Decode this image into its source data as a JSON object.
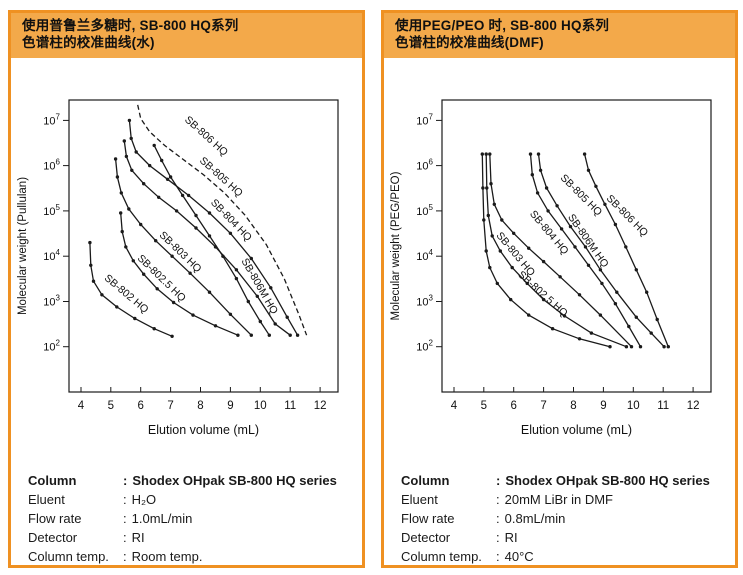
{
  "colors": {
    "panel_border": "#EF9122",
    "header_bg": "#F3A94A",
    "curve": "#1a1a1a",
    "text": "#111111"
  },
  "separator": ":",
  "panels": [
    {
      "header": {
        "line1": "使用普鲁兰多糖时, SB-800 HQ系列",
        "line2": "色谱柱的校准曲线(水)"
      },
      "specs": [
        {
          "label": "Column",
          "value": "Shodex OHpak SB-800 HQ series",
          "bold": true
        },
        {
          "label": "Eluent",
          "value": "H₂O",
          "bold": false
        },
        {
          "label": "Flow rate",
          "value": "1.0mL/min",
          "bold": false
        },
        {
          "label": "Detector",
          "value": "RI",
          "bold": false
        },
        {
          "label": "Column temp.",
          "value": "Room temp.",
          "bold": false
        }
      ]
    },
    {
      "header": {
        "line1": "使用PEG/PEO 时, SB-800 HQ系列",
        "line2": "色谱柱的校准曲线(DMF)"
      },
      "specs": [
        {
          "label": "Column",
          "value": "Shodex OHpak SB-800 HQ series",
          "bold": true
        },
        {
          "label": "Eluent",
          "value": "20mM LiBr in DMF",
          "bold": false
        },
        {
          "label": "Flow rate",
          "value": "0.8mL/min",
          "bold": false
        },
        {
          "label": "Detector",
          "value": "RI",
          "bold": false
        },
        {
          "label": "Column temp.",
          "value": "40°C",
          "bold": false
        }
      ]
    }
  ],
  "chart_data": [
    {
      "type": "line",
      "title": "使用普鲁兰多糖时, SB-800 HQ系列色谱柱的校准曲线(水)",
      "xlabel": "Elution volume (mL)",
      "ylabel": "Molecular weight (Pullulan)",
      "xlim": [
        3.6,
        12.6
      ],
      "ylim_log": [
        1.0,
        7.45
      ],
      "x_ticks": [
        4,
        5,
        6,
        7,
        8,
        9,
        10,
        11,
        12
      ],
      "y_tick_exponents": [
        2,
        3,
        4,
        5,
        6,
        7
      ],
      "grid": false,
      "legend_position": "labels-on-curves",
      "series": [
        {
          "name": "SB-802 HQ",
          "dashed": false,
          "label_pos": [
            5.45,
            1300
          ],
          "label_angle": 40,
          "points": [
            [
              4.3,
              20000
            ],
            [
              4.33,
              6300
            ],
            [
              4.42,
              2800
            ],
            [
              4.7,
              1400
            ],
            [
              5.2,
              760
            ],
            [
              5.8,
              420
            ],
            [
              6.45,
              250
            ],
            [
              7.05,
              170
            ]
          ]
        },
        {
          "name": "SB-802.5 HQ",
          "dashed": false,
          "label_pos": [
            6.62,
            2900
          ],
          "label_angle": 44,
          "points": [
            [
              5.33,
              90000
            ],
            [
              5.38,
              35000
            ],
            [
              5.5,
              16000
            ],
            [
              5.75,
              7900
            ],
            [
              6.1,
              4000
            ],
            [
              6.55,
              1900
            ],
            [
              7.1,
              950
            ],
            [
              7.75,
              500
            ],
            [
              8.5,
              290
            ],
            [
              9.25,
              180
            ]
          ]
        },
        {
          "name": "SB-803 HQ",
          "dashed": false,
          "label_pos": [
            7.25,
            11000
          ],
          "label_angle": 44,
          "points": [
            [
              5.16,
              1400000
            ],
            [
              5.22,
              560000
            ],
            [
              5.35,
              250000
            ],
            [
              5.6,
              110000
            ],
            [
              6.0,
              50000
            ],
            [
              6.5,
              22000
            ],
            [
              7.05,
              10000
            ],
            [
              7.65,
              4200
            ],
            [
              8.3,
              1600
            ],
            [
              9.0,
              520
            ],
            [
              9.7,
              180
            ]
          ]
        },
        {
          "name": "SB-804 HQ",
          "dashed": false,
          "label_pos": [
            8.95,
            56000
          ],
          "label_angle": 46,
          "points": [
            [
              5.45,
              3500000
            ],
            [
              5.52,
              1600000
            ],
            [
              5.7,
              790000
            ],
            [
              6.1,
              400000
            ],
            [
              6.6,
              200000
            ],
            [
              7.2,
              100000
            ],
            [
              7.85,
              42000
            ],
            [
              8.5,
              16000
            ],
            [
              9.2,
              5000
            ],
            [
              9.9,
              1300
            ],
            [
              10.5,
              320
            ],
            [
              11.0,
              180
            ]
          ]
        },
        {
          "name": "SB-806M HQ",
          "dashed": false,
          "label_pos": [
            9.88,
            2000
          ],
          "label_angle": 60,
          "points": [
            [
              6.45,
              2800000
            ],
            [
              6.7,
              1300000
            ],
            [
              7.0,
              560000
            ],
            [
              7.4,
              220000
            ],
            [
              7.85,
              79000
            ],
            [
              8.3,
              28000
            ],
            [
              8.75,
              10000
            ],
            [
              9.2,
              3200
            ],
            [
              9.6,
              1000
            ],
            [
              10.0,
              360
            ],
            [
              10.3,
              180
            ]
          ]
        },
        {
          "name": "SB-805 HQ",
          "dashed": false,
          "label_pos": [
            8.62,
            500000
          ],
          "label_angle": 42,
          "points": [
            [
              5.62,
              10000000
            ],
            [
              5.68,
              4000000
            ],
            [
              5.85,
              2000000
            ],
            [
              6.3,
              1000000
            ],
            [
              6.9,
              500000
            ],
            [
              7.6,
              220000
            ],
            [
              8.3,
              90000
            ],
            [
              9.0,
              32000
            ],
            [
              9.7,
              8900
            ],
            [
              10.35,
              2000
            ],
            [
              10.9,
              450
            ],
            [
              11.25,
              180
            ]
          ]
        },
        {
          "name": "SB-806 HQ",
          "dashed": true,
          "label_pos": [
            8.12,
            4000000
          ],
          "label_angle": 42,
          "points": [
            [
              5.9,
              22000000
            ],
            [
              6.0,
              11000000
            ],
            [
              6.3,
              5600000
            ],
            [
              6.8,
              2800000
            ],
            [
              7.4,
              1400000
            ],
            [
              8.1,
              630000
            ],
            [
              8.8,
              250000
            ],
            [
              9.5,
              79000
            ],
            [
              10.2,
              18000
            ],
            [
              10.8,
              3200
            ],
            [
              11.3,
              500
            ],
            [
              11.55,
              180
            ]
          ]
        }
      ]
    },
    {
      "type": "line",
      "title": "使用PEG/PEO 时, SB-800 HQ系列色谱柱的校准曲线(DMF)",
      "xlabel": "Elution volume (mL)",
      "ylabel": "Molecular weight (PEG/PEO)",
      "xlim": [
        3.6,
        12.6
      ],
      "ylim_log": [
        1.0,
        7.45
      ],
      "x_ticks": [
        4,
        5,
        6,
        7,
        8,
        9,
        10,
        11,
        12
      ],
      "y_tick_exponents": [
        2,
        3,
        4,
        5,
        6,
        7
      ],
      "grid": false,
      "legend_position": "labels-on-curves",
      "series": [
        {
          "name": "SB-802.5 HQ",
          "dashed": false,
          "label_pos": [
            6.9,
            1300
          ],
          "label_angle": 42,
          "points": [
            [
              4.95,
              1800000
            ],
            [
              4.97,
              320000
            ],
            [
              5.0,
              63000
            ],
            [
              5.08,
              13000
            ],
            [
              5.2,
              5600
            ],
            [
              5.45,
              2500
            ],
            [
              5.9,
              1100
            ],
            [
              6.5,
              500
            ],
            [
              7.3,
              250
            ],
            [
              8.2,
              150
            ],
            [
              9.22,
              100
            ]
          ]
        },
        {
          "name": "SB-803 HQ",
          "dashed": false,
          "label_pos": [
            5.98,
            10000
          ],
          "label_angle": 50,
          "points": [
            [
              5.08,
              1800000
            ],
            [
              5.1,
              320000
            ],
            [
              5.15,
              79000
            ],
            [
              5.28,
              28000
            ],
            [
              5.55,
              13000
            ],
            [
              5.95,
              5600
            ],
            [
              6.45,
              2500
            ],
            [
              7.0,
              1100
            ],
            [
              7.7,
              480
            ],
            [
              8.6,
              200
            ],
            [
              9.77,
              100
            ]
          ]
        },
        {
          "name": "SB-804 HQ",
          "dashed": false,
          "label_pos": [
            7.1,
            30000
          ],
          "label_angle": 50,
          "points": [
            [
              5.2,
              1800000
            ],
            [
              5.24,
              400000
            ],
            [
              5.35,
              140000
            ],
            [
              5.6,
              63000
            ],
            [
              6.0,
              32000
            ],
            [
              6.5,
              15000
            ],
            [
              7.0,
              7600
            ],
            [
              7.55,
              3500
            ],
            [
              8.2,
              1400
            ],
            [
              8.9,
              500
            ],
            [
              9.94,
              100
            ]
          ]
        },
        {
          "name": "SB-806M HQ",
          "dashed": false,
          "label_pos": [
            8.4,
            20000
          ],
          "label_angle": 55,
          "points": [
            [
              6.56,
              1800000
            ],
            [
              6.62,
              630000
            ],
            [
              6.8,
              250000
            ],
            [
              7.15,
              100000
            ],
            [
              7.6,
              40000
            ],
            [
              8.05,
              16000
            ],
            [
              8.5,
              6300
            ],
            [
              8.95,
              2500
            ],
            [
              9.4,
              890
            ],
            [
              9.85,
              280
            ],
            [
              10.24,
              100
            ]
          ]
        },
        {
          "name": "SB-805 HQ",
          "dashed": false,
          "label_pos": [
            8.18,
            200000
          ],
          "label_angle": 45,
          "points": [
            [
              6.83,
              1800000
            ],
            [
              6.9,
              790000
            ],
            [
              7.1,
              320000
            ],
            [
              7.45,
              130000
            ],
            [
              7.9,
              45000
            ],
            [
              8.4,
              16000
            ],
            [
              8.9,
              5000
            ],
            [
              9.45,
              1600
            ],
            [
              10.1,
              450
            ],
            [
              10.6,
              200
            ],
            [
              11.03,
              100
            ]
          ]
        },
        {
          "name": "SB-806 HQ",
          "dashed": false,
          "label_pos": [
            9.72,
            70000
          ],
          "label_angle": 45,
          "points": [
            [
              8.37,
              1800000
            ],
            [
              8.5,
              790000
            ],
            [
              8.75,
              350000
            ],
            [
              9.05,
              140000
            ],
            [
              9.4,
              50000
            ],
            [
              9.75,
              16000
            ],
            [
              10.1,
              5000
            ],
            [
              10.45,
              1600
            ],
            [
              10.8,
              400
            ],
            [
              11.17,
              100
            ]
          ]
        }
      ]
    }
  ]
}
